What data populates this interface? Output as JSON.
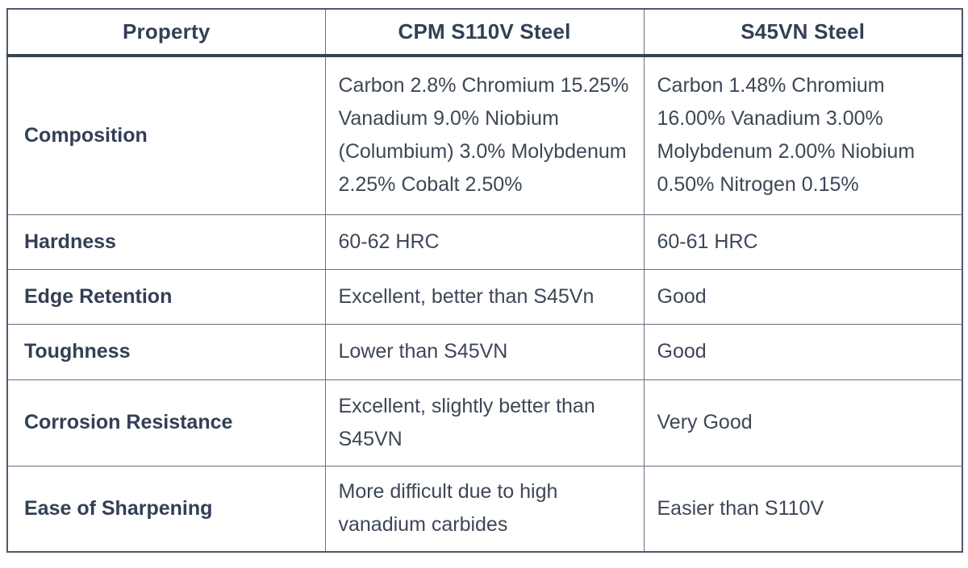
{
  "table": {
    "header": {
      "property": "Property",
      "col_s110v": "CPM S110V Steel",
      "col_s45vn": "S45VN Steel"
    },
    "rows": [
      {
        "property": "Composition",
        "s110v": "Carbon 2.8% Chromium 15.25% Vanadium 9.0% Niobium (Columbium) 3.0% Molybdenum 2.25% Cobalt 2.50%",
        "s45vn": "Carbon 1.48% Chromium 16.00% Vanadium 3.00% Molybdenum 2.00% Niobium 0.50% Nitrogen 0.15%"
      },
      {
        "property": "Hardness",
        "s110v": "60-62 HRC",
        "s45vn": "60-61 HRC"
      },
      {
        "property": "Edge Retention",
        "s110v": "Excellent, better than S45Vn",
        "s45vn": "Good"
      },
      {
        "property": "Toughness",
        "s110v": "Lower than S45VN",
        "s45vn": "Good"
      },
      {
        "property": "Corrosion Resistance",
        "s110v": "Excellent, slightly better than S45VN",
        "s45vn": "Very Good"
      },
      {
        "property": "Ease of Sharpening",
        "s110v": "More difficult due to high vanadium carbides",
        "s45vn": "Easier than S110V"
      }
    ],
    "colors": {
      "text": "#3d4757",
      "heading_text": "#333f55",
      "outer_border": "#4d586c",
      "inner_border": "#66717f",
      "header_rule": "#39424f",
      "background": "#ffffff"
    }
  }
}
